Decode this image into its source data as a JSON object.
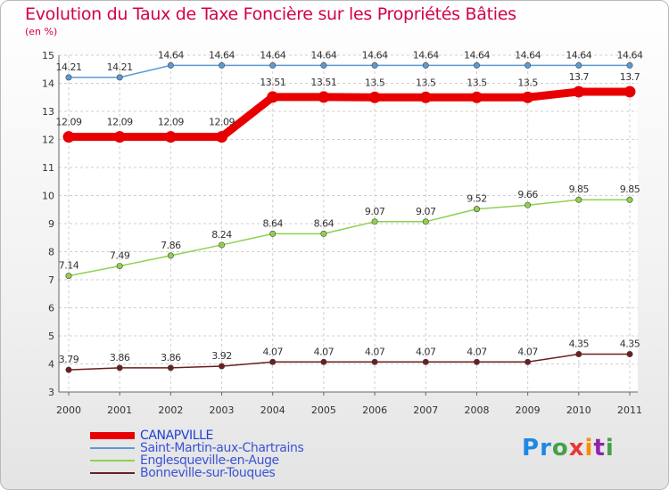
{
  "chart_data": {
    "type": "line",
    "title": "Evolution du Taux de Taxe Foncière sur les Propriétés Bâties",
    "subtitle": "(en %)",
    "x": [
      "2000",
      "2001",
      "2002",
      "2003",
      "2004",
      "2005",
      "2006",
      "2007",
      "2008",
      "2009",
      "2010",
      "2011"
    ],
    "ylim": [
      3,
      15
    ],
    "yticks": [
      3,
      4,
      5,
      6,
      7,
      8,
      9,
      10,
      11,
      12,
      13,
      14,
      15
    ],
    "grid": true,
    "legend_position": "bottom-left",
    "series": [
      {
        "name": "CANAPVILLE",
        "color": "#e80000",
        "emphasis": true,
        "values": [
          12.09,
          12.09,
          12.09,
          12.09,
          13.51,
          13.51,
          13.5,
          13.5,
          13.5,
          13.5,
          13.7,
          13.7
        ],
        "labels": [
          "12.09",
          "12.09",
          "12.09",
          "12.09",
          "13.51",
          "13.51",
          "13.5",
          "13.5",
          "13.5",
          "13.5",
          "13.7",
          "13.7"
        ]
      },
      {
        "name": "Saint-Martin-aux-Chartrains",
        "color": "#5b9bd5",
        "values": [
          14.21,
          14.21,
          14.64,
          14.64,
          14.64,
          14.64,
          14.64,
          14.64,
          14.64,
          14.64,
          14.64,
          14.64
        ],
        "labels": [
          "14.21",
          "14.21",
          "14.64",
          "14.64",
          "14.64",
          "14.64",
          "14.64",
          "14.64",
          "14.64",
          "14.64",
          "14.64",
          "14.64"
        ]
      },
      {
        "name": "Englesqueville-en-Auge",
        "color": "#8fd14f",
        "values": [
          7.14,
          7.49,
          7.86,
          8.24,
          8.64,
          8.64,
          9.07,
          9.07,
          9.52,
          9.66,
          9.85,
          9.85
        ],
        "labels": [
          "7.14",
          "7.49",
          "7.86",
          "8.24",
          "8.64",
          "8.64",
          "9.07",
          "9.07",
          "9.52",
          "9.66",
          "9.85",
          "9.85"
        ]
      },
      {
        "name": "Bonneville-sur-Touques",
        "color": "#6b1f1f",
        "values": [
          3.79,
          3.86,
          3.86,
          3.92,
          4.07,
          4.07,
          4.07,
          4.07,
          4.07,
          4.07,
          4.35,
          4.35
        ],
        "labels": [
          "3.79",
          "3.86",
          "3.86",
          "3.92",
          "4.07",
          "4.07",
          "4.07",
          "4.07",
          "4.07",
          "4.07",
          "4.35",
          "4.35"
        ]
      }
    ]
  },
  "branding": {
    "logo_text": "Proxiti",
    "logo_letters": [
      "P",
      "r",
      "o",
      "x",
      "i",
      "t",
      "i"
    ],
    "logo_colors": [
      "#1e88e5",
      "#1e88e5",
      "#43a047",
      "#e53935",
      "#fb8c00",
      "#8e24aa",
      "#43a047"
    ]
  }
}
